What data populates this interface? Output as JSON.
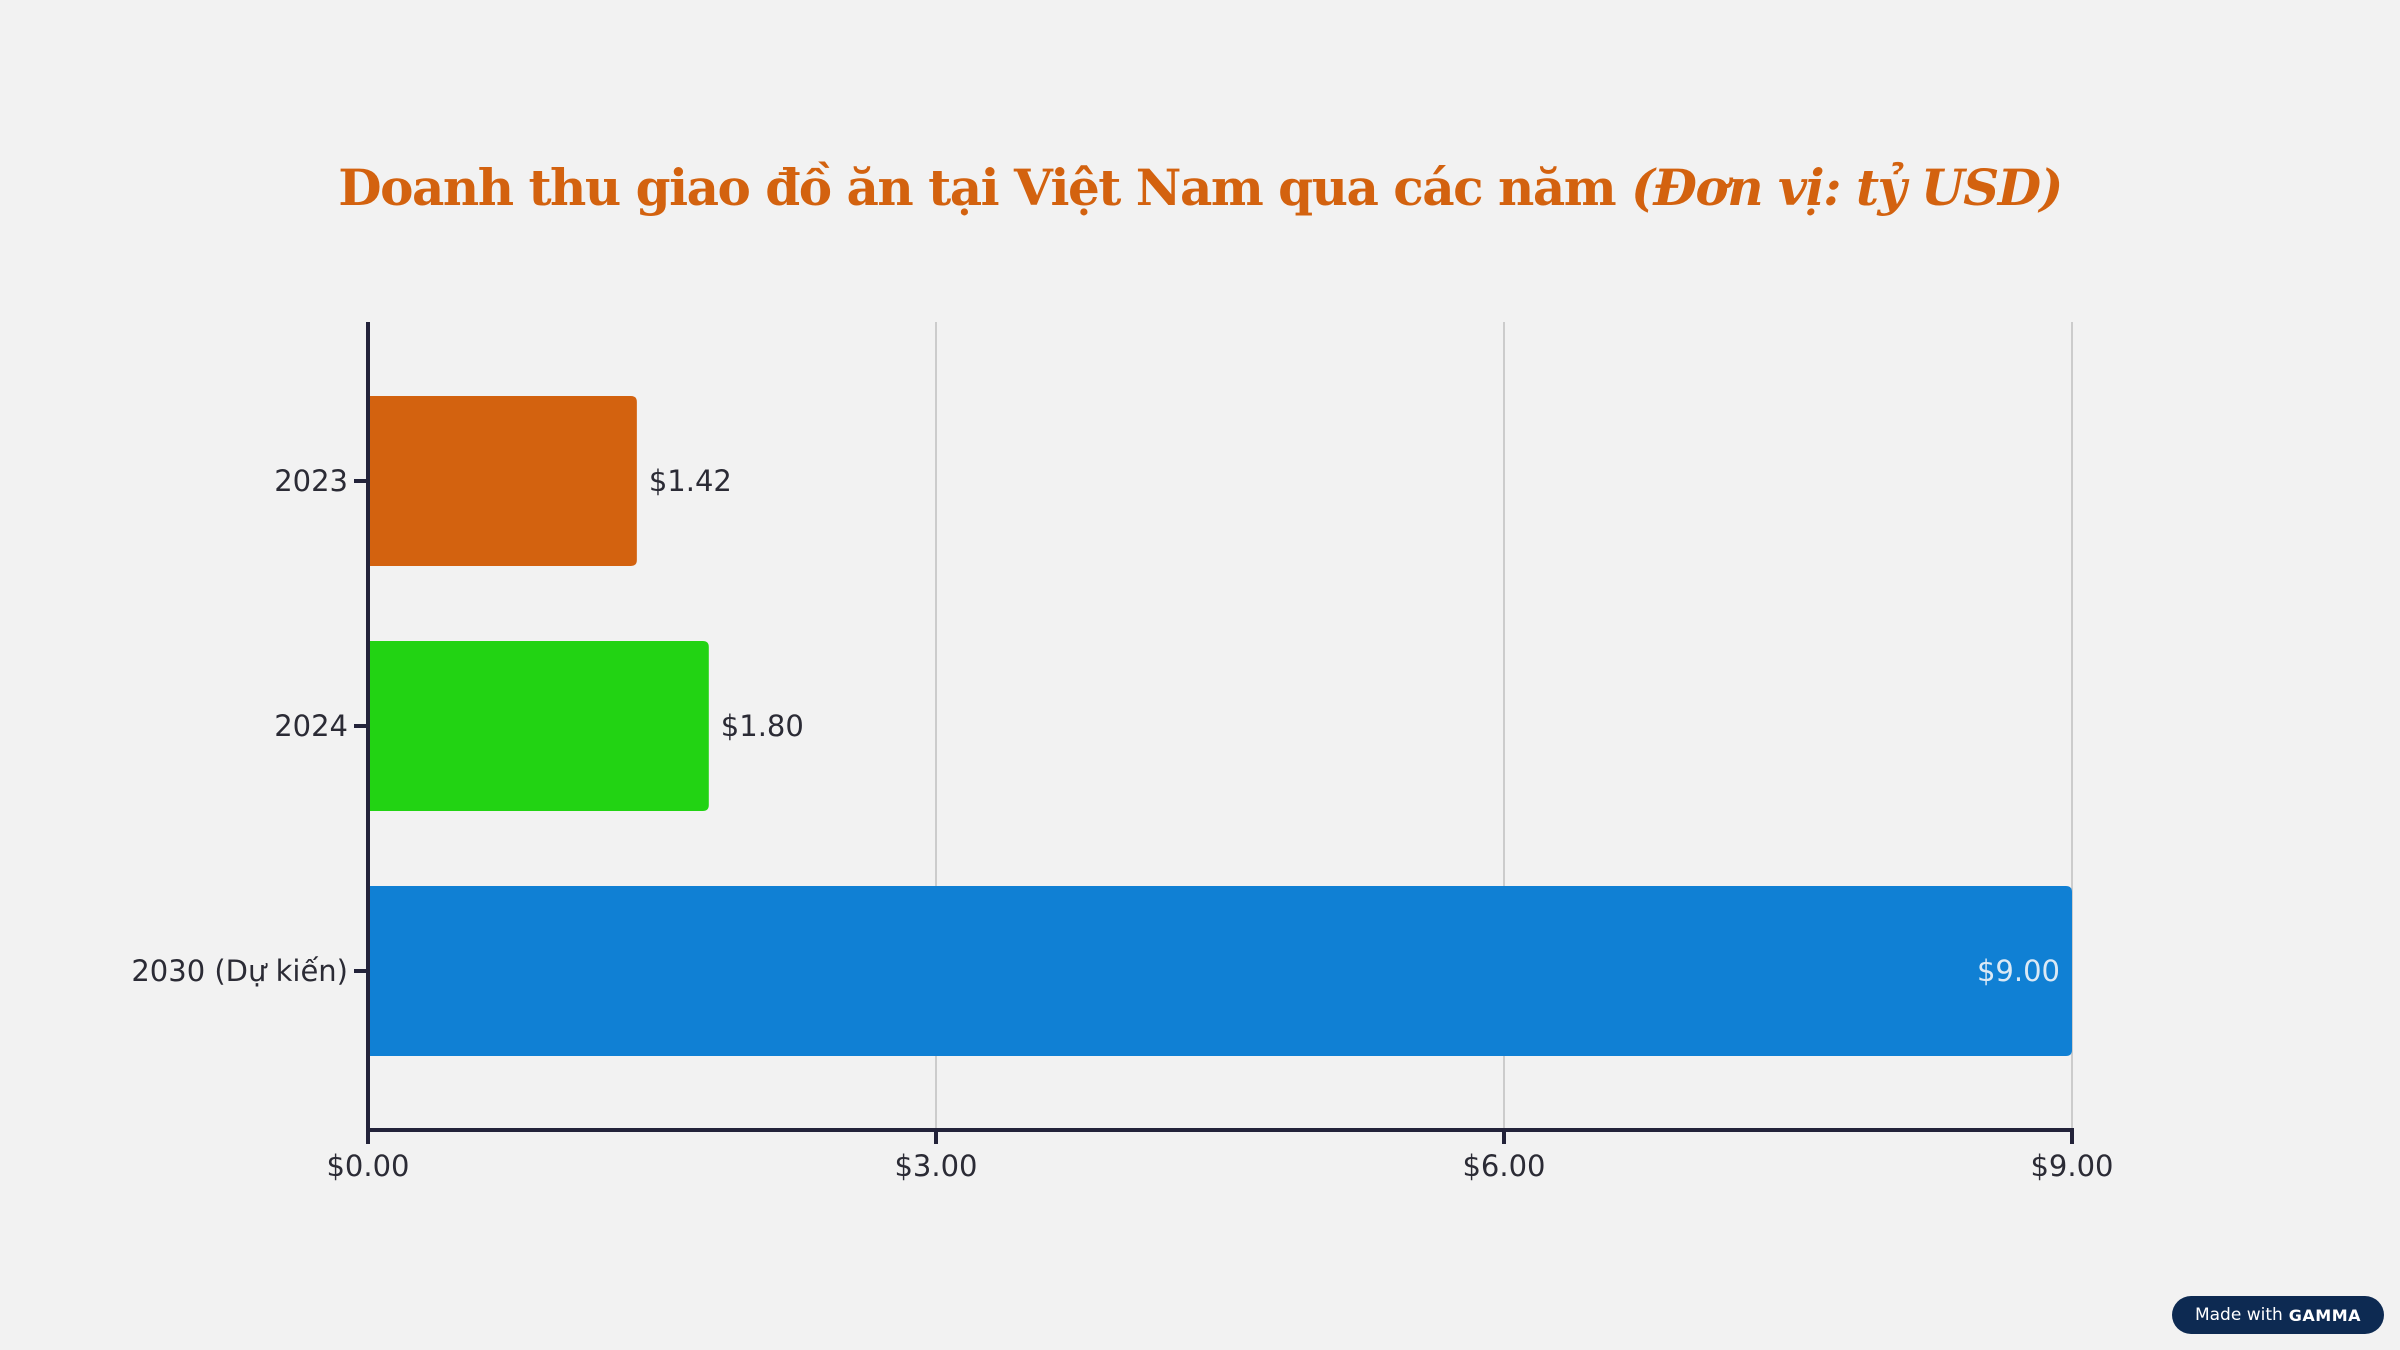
{
  "title": {
    "main": "Doanh thu giao đồ ăn tại Việt Nam qua các năm",
    "unit": "(Đơn vị: tỷ USD)"
  },
  "chart_data": {
    "type": "bar",
    "orientation": "horizontal",
    "title": "Doanh thu giao đồ ăn tại Việt Nam qua các năm (Đơn vị: tỷ USD)",
    "categories": [
      "2023",
      "2024",
      "2030 (Dự kiến)"
    ],
    "values": [
      1.42,
      1.8,
      9.0
    ],
    "value_labels": [
      "$1.42",
      "$1.80",
      "$9.00"
    ],
    "colors": [
      "#d3620f",
      "#22d313",
      "#1080d4"
    ],
    "xlim": [
      0,
      9
    ],
    "x_ticks": [
      0,
      3,
      6,
      9
    ],
    "x_tick_labels": [
      "$0.00",
      "$3.00",
      "$6.00",
      "$9.00"
    ],
    "grid": "vertical",
    "legend": "none"
  },
  "badge": {
    "prefix": "Made with",
    "brand": "GAMMA"
  }
}
